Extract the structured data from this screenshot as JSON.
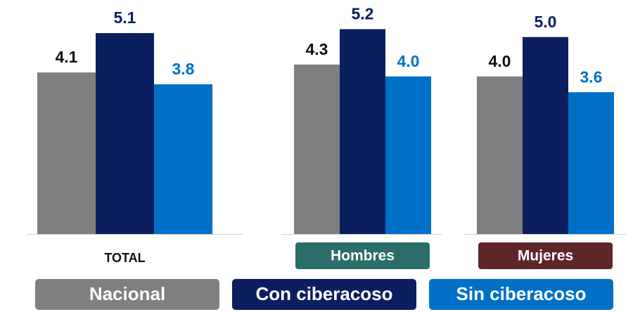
{
  "chart_data": {
    "type": "bar",
    "categories": [
      "TOTAL",
      "Hombres",
      "Mujeres"
    ],
    "series": [
      {
        "name": "Nacional",
        "color": "#7f7f7f",
        "label_color": "#111111",
        "values": [
          4.1,
          4.3,
          4.0
        ],
        "value_labels": [
          "4.1",
          "4.3",
          "4.0"
        ]
      },
      {
        "name": "Con ciberacoso",
        "color": "#0b1f60",
        "label_color": "#0b1f60",
        "values": [
          5.1,
          5.2,
          5.0
        ],
        "value_labels": [
          "5.1",
          "5.2",
          "5.0"
        ]
      },
      {
        "name": "Sin ciberacoso",
        "color": "#0070c6",
        "label_color": "#0070c6",
        "values": [
          3.8,
          4.0,
          3.6
        ],
        "value_labels": [
          "3.8",
          "4.0",
          "3.6"
        ]
      }
    ],
    "ylim": [
      0,
      5.94
    ]
  }
}
